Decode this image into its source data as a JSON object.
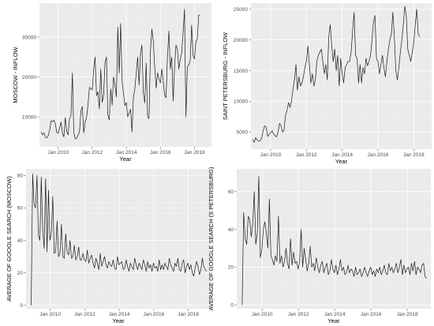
{
  "chart_data": [
    {
      "type": "line",
      "xlabel": "Year",
      "ylabel": "MOSCOW - INFLOW",
      "xlim": [
        2008.9,
        2019.0
      ],
      "ylim": [
        2500,
        38500
      ],
      "x_ticks": [
        {
          "value": 2010,
          "label": "Jan 2010"
        },
        {
          "value": 2012,
          "label": "Jan 2012"
        },
        {
          "value": 2014,
          "label": "Jan 2014"
        },
        {
          "value": 2016,
          "label": "Jan 2016"
        },
        {
          "value": 2018,
          "label": "Jan 2018"
        }
      ],
      "y_ticks": [
        {
          "value": 10000,
          "label": "10000"
        },
        {
          "value": 20000,
          "label": "20000"
        },
        {
          "value": 30000,
          "label": "30000"
        }
      ],
      "grid": true,
      "series": [
        {
          "x_start": 2009.0,
          "x_step": 0.0833333,
          "values": [
            6200,
            5500,
            6000,
            4900,
            4700,
            5300,
            6800,
            9000,
            8800,
            9200,
            8200,
            6100,
            5900,
            7200,
            8700,
            5900,
            5000,
            9800,
            6400,
            5500,
            9600,
            10300,
            21000,
            6100,
            4500,
            4700,
            5500,
            6200,
            11500,
            12600,
            6000,
            8800,
            9800,
            13000,
            17400,
            17000,
            16800,
            22000,
            25000,
            15300,
            16300,
            12000,
            22000,
            13600,
            15500,
            23600,
            25000,
            10500,
            9200,
            17000,
            13000,
            20000,
            18000,
            15000,
            32500,
            21000,
            33400,
            19000,
            16000,
            12800,
            13600,
            10000,
            11000,
            11900,
            6200,
            14800,
            17000,
            21000,
            25000,
            18000,
            26000,
            28000,
            16000,
            13500,
            23500,
            10000,
            9600,
            26500,
            32000,
            29000,
            22500,
            17200,
            21000,
            19500,
            18500,
            22000,
            19000,
            15500,
            14800,
            25000,
            31500,
            22000,
            25000,
            14000,
            22500,
            28000,
            27000,
            22000,
            24500,
            26000,
            31000,
            37000,
            10000,
            22500,
            23000,
            24000,
            33000,
            25500,
            24500,
            28800,
            29500,
            35500,
            35500
          ]
        }
      ]
    },
    {
      "type": "line",
      "xlabel": "Year",
      "ylabel": "SAINT PETERSBURG - INFLOW",
      "xlim": [
        2008.9,
        2019.0
      ],
      "ylim": [
        2200,
        26000
      ],
      "x_ticks": [
        {
          "value": 2010,
          "label": "Jan 2010"
        },
        {
          "value": 2012,
          "label": "Jan 2012"
        },
        {
          "value": 2014,
          "label": "Jan 2014"
        },
        {
          "value": 2016,
          "label": "Jan 2016"
        },
        {
          "value": 2018,
          "label": "Jan 2018"
        }
      ],
      "y_ticks": [
        {
          "value": 5000,
          "label": "5000"
        },
        {
          "value": 10000,
          "label": "10000"
        },
        {
          "value": 15000,
          "label": "15000"
        },
        {
          "value": 20000,
          "label": "20000"
        },
        {
          "value": 25000,
          "label": "25000"
        }
      ],
      "grid": true,
      "series": [
        {
          "x_start": 2009.0,
          "x_step": 0.0833333,
          "values": [
            3800,
            3300,
            4100,
            3700,
            3500,
            3600,
            4000,
            5200,
            6000,
            5800,
            4300,
            4600,
            4900,
            5200,
            4700,
            4400,
            4200,
            5000,
            6400,
            6000,
            5000,
            5300,
            7700,
            8500,
            9800,
            9000,
            10000,
            12000,
            13500,
            16000,
            11800,
            14000,
            12500,
            13000,
            14000,
            15500,
            16500,
            19000,
            16000,
            13000,
            14500,
            12500,
            13500,
            16500,
            17500,
            18000,
            18500,
            16500,
            14500,
            16000,
            13500,
            20500,
            22500,
            19000,
            16500,
            18500,
            15000,
            17500,
            12500,
            17000,
            14500,
            13000,
            15500,
            16000,
            16500,
            16500,
            18000,
            21500,
            24500,
            17500,
            17000,
            13000,
            16000,
            13000,
            15500,
            14500,
            17000,
            15800,
            16500,
            17500,
            20000,
            23000,
            24000,
            17000,
            16500,
            14500,
            16000,
            17500,
            15500,
            14000,
            16500,
            18500,
            20000,
            21000,
            24500,
            20500,
            15000,
            13500,
            15500,
            18000,
            20000,
            22500,
            25500,
            24000,
            18500,
            17500,
            16500,
            18000,
            19500,
            22500,
            25000,
            21000,
            20500
          ]
        }
      ]
    },
    {
      "type": "line",
      "xlabel": "Year",
      "ylabel": "AVERAGE OF GOOGLE SEARCH (MOSCOW)",
      "xlim": [
        2008.6,
        2019.3
      ],
      "ylim": [
        -2,
        84
      ],
      "x_ticks": [
        {
          "value": 2010,
          "label": "Jan 2010"
        },
        {
          "value": 2012,
          "label": "Jan 2012"
        },
        {
          "value": 2014,
          "label": "Jan 2014"
        },
        {
          "value": 2016,
          "label": "Jan 2016"
        },
        {
          "value": 2018,
          "label": "Jan 2018"
        }
      ],
      "y_ticks": [
        {
          "value": 0,
          "label": "0"
        },
        {
          "value": 20,
          "label": "20"
        },
        {
          "value": 40,
          "label": "40"
        },
        {
          "value": 60,
          "label": "60"
        },
        {
          "value": 80,
          "label": "80"
        }
      ],
      "grid": true,
      "series": [
        {
          "x_start": 2008.9,
          "x_step": 0.0833333,
          "values": [
            0,
            81,
            62,
            60,
            80,
            43,
            40,
            79,
            46,
            35,
            78,
            33,
            71,
            40,
            45,
            67,
            32,
            33,
            52,
            30,
            32,
            50,
            30,
            29,
            44,
            33,
            31,
            40,
            29,
            30,
            37,
            28,
            30,
            36,
            28,
            28,
            32,
            28,
            27,
            34,
            26,
            29,
            31,
            26,
            23,
            29,
            26,
            22,
            32,
            24,
            27,
            30,
            25,
            23,
            27,
            25,
            24,
            28,
            23,
            22,
            30,
            25,
            26,
            27,
            22,
            23,
            28,
            24,
            21,
            26,
            24,
            22,
            29,
            25,
            22,
            26,
            24,
            22,
            28,
            25,
            21,
            27,
            23,
            25,
            21,
            26,
            23,
            24,
            21,
            28,
            22,
            25,
            22,
            26,
            24,
            22,
            29,
            25,
            23,
            21,
            26,
            24,
            29,
            22,
            21,
            26,
            28,
            20,
            24,
            26,
            22,
            25,
            20,
            18,
            23,
            27,
            24,
            19,
            22,
            29,
            24,
            22,
            21
          ]
        }
      ]
    },
    {
      "type": "line",
      "xlabel": "Year",
      "ylabel": "AVERAGE OF GOOGLE SEARCH (S PETERSBURG)",
      "xlim": [
        2008.6,
        2019.3
      ],
      "ylim": [
        -2,
        72
      ],
      "x_ticks": [
        {
          "value": 2010,
          "label": "Jan 2010"
        },
        {
          "value": 2012,
          "label": "Jan 2012"
        },
        {
          "value": 2014,
          "label": "Jan 2014"
        },
        {
          "value": 2016,
          "label": "Jan 2016"
        },
        {
          "value": 2018,
          "label": "Jan 2018"
        }
      ],
      "y_ticks": [
        {
          "value": 0,
          "label": "0"
        },
        {
          "value": 20,
          "label": "20"
        },
        {
          "value": 40,
          "label": "40"
        },
        {
          "value": 60,
          "label": "60"
        }
      ],
      "grid": true,
      "series": [
        {
          "x_start": 2008.9,
          "x_step": 0.0833333,
          "values": [
            0,
            49,
            35,
            32,
            47,
            45,
            36,
            43,
            60,
            32,
            38,
            68,
            25,
            29,
            40,
            44,
            38,
            30,
            56,
            26,
            24,
            21,
            26,
            23,
            47,
            22,
            26,
            20,
            23,
            30,
            22,
            19,
            35,
            21,
            28,
            22,
            23,
            19,
            23,
            40,
            20,
            30,
            24,
            18,
            22,
            31,
            20,
            22,
            18,
            25,
            20,
            17,
            21,
            23,
            17,
            20,
            22,
            16,
            18,
            24,
            19,
            17,
            21,
            16,
            19,
            24,
            18,
            20,
            16,
            17,
            21,
            17,
            19,
            18,
            15,
            20,
            16,
            17,
            19,
            15,
            17,
            20,
            17,
            15,
            18,
            20,
            16,
            18,
            15,
            19,
            17,
            20,
            16,
            18,
            21,
            17,
            16,
            22,
            18,
            20,
            17,
            19,
            22,
            17,
            20,
            24,
            16,
            21,
            17,
            19,
            20,
            16,
            22,
            18,
            23,
            16,
            20,
            19,
            17,
            21,
            22,
            15,
            14
          ]
        }
      ]
    }
  ]
}
